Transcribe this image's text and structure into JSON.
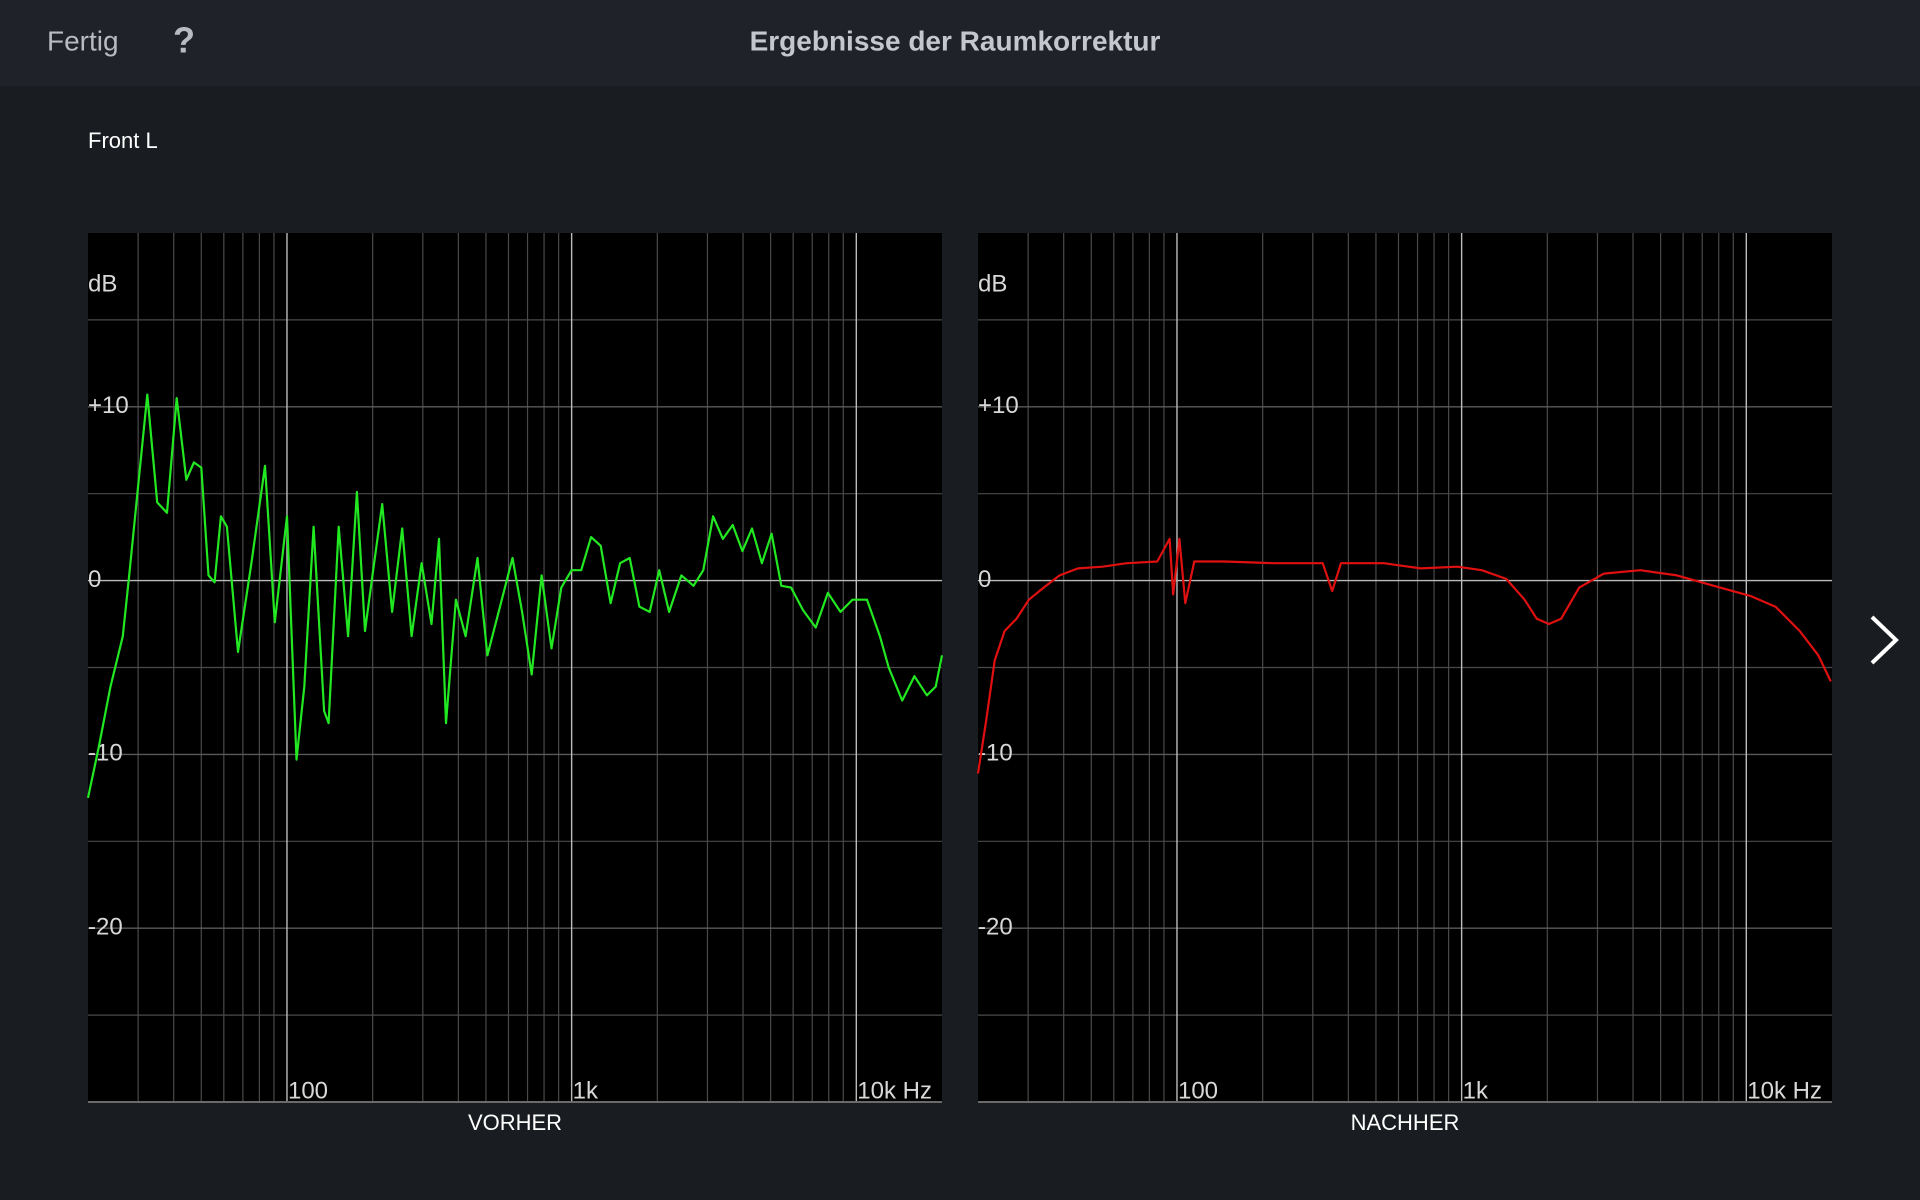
{
  "header": {
    "done": "Fertig",
    "help": "?",
    "title": "Ergebnisse der Raumkorrektur"
  },
  "section": {
    "title": "Front L"
  },
  "chart_data": [
    {
      "type": "line",
      "xlabel": "VORHER",
      "ylabel": "dB",
      "xscale": "log",
      "color": "#22e822",
      "xlim": [
        20,
        20000
      ],
      "ylim": [
        -30,
        20
      ],
      "xticks": [
        {
          "value": 100,
          "label": "100"
        },
        {
          "value": 1000,
          "label": "1k"
        },
        {
          "value": 10000,
          "label": "10k Hz"
        }
      ],
      "xminor": [
        30,
        40,
        50,
        60,
        70,
        80,
        90,
        200,
        300,
        400,
        500,
        600,
        700,
        800,
        900,
        2000,
        3000,
        4000,
        5000,
        6000,
        7000,
        8000,
        9000
      ],
      "yticks": [
        {
          "value": 10,
          "label": "+10"
        },
        0,
        -10,
        -20
      ],
      "yminor": [
        15,
        5,
        -5,
        -15,
        -25
      ],
      "x": [
        20,
        21.8,
        24,
        26.5,
        27.9,
        29.9,
        32.3,
        35,
        37.9,
        41,
        44.3,
        47.1,
        50,
        53,
        55.7,
        58.6,
        61.5,
        67.3,
        75,
        83.7,
        90.6,
        100,
        108,
        115,
        124,
        135,
        140,
        152,
        164,
        176,
        188,
        200,
        216,
        234,
        254,
        274,
        297,
        322,
        342,
        362,
        392,
        424,
        467,
        506,
        560,
        620,
        670,
        724,
        784,
        850,
        920,
        1000,
        1080,
        1170,
        1265,
        1370,
        1480,
        1600,
        1730,
        1880,
        2030,
        2200,
        2430,
        2680,
        2900,
        3140,
        3400,
        3680,
        3980,
        4300,
        4660,
        5040,
        5450,
        5900,
        6500,
        7200,
        7950,
        8800,
        9700,
        10900,
        12100,
        13000,
        14500,
        16000,
        17700,
        19000,
        20000
      ],
      "values": [
        -12.5,
        -9.6,
        -6.1,
        -3.2,
        0.3,
        5.2,
        10.7,
        4.5,
        3.9,
        10.5,
        5.8,
        6.8,
        6.5,
        0.3,
        -0.1,
        3.7,
        3.1,
        -4.1,
        1,
        6.6,
        -2.4,
        3.7,
        -10.3,
        -6.1,
        3.1,
        -7.5,
        -8.2,
        3.1,
        -3.2,
        5.1,
        -2.9,
        0.4,
        4.4,
        -1.8,
        3,
        -3.2,
        1,
        -2.5,
        2.4,
        -8.2,
        -1.1,
        -3.2,
        1.3,
        -4.3,
        -1.5,
        1.3,
        -1.8,
        -5.4,
        0.3,
        -3.9,
        -0.4,
        0.6,
        0.6,
        2.5,
        2,
        -1.3,
        1,
        1.3,
        -1.5,
        -1.8,
        0.6,
        -1.8,
        0.3,
        -0.3,
        0.6,
        3.7,
        2.4,
        3.2,
        1.7,
        3,
        1,
        2.7,
        -0.3,
        -0.4,
        -1.7,
        -2.7,
        -0.7,
        -1.8,
        -1.1,
        -1.1,
        -3.2,
        -5,
        -6.9,
        -5.5,
        -6.6,
        -6.1,
        -4.3
      ]
    },
    {
      "type": "line",
      "xlabel": "NACHHER",
      "ylabel": "dB",
      "xscale": "log",
      "color": "#e01010",
      "xlim": [
        20,
        20000
      ],
      "ylim": [
        -30,
        20
      ],
      "xticks": [
        {
          "value": 100,
          "label": "100"
        },
        {
          "value": 1000,
          "label": "1k"
        },
        {
          "value": 10000,
          "label": "10k Hz"
        }
      ],
      "xminor": [
        30,
        40,
        50,
        60,
        70,
        80,
        90,
        200,
        300,
        400,
        500,
        600,
        700,
        800,
        900,
        2000,
        3000,
        4000,
        5000,
        6000,
        7000,
        8000,
        9000
      ],
      "yticks": [
        {
          "value": 10,
          "label": "+10"
        },
        0,
        -10,
        -20
      ],
      "yminor": [
        15,
        5,
        -5,
        -15,
        -25
      ],
      "x": [
        20,
        21.3,
        22.9,
        24.8,
        27.3,
        30.2,
        34,
        38.7,
        44.9,
        54.7,
        66.6,
        85.3,
        94.2,
        97,
        102,
        107,
        115,
        147,
        218,
        325,
        351,
        377,
        533,
        718,
        967,
        1177,
        1434,
        1664,
        1836,
        2026,
        2236,
        2589,
        3160,
        4247,
        5710,
        7690,
        10400,
        12660,
        15400,
        17900,
        19800
      ],
      "values": [
        -11.1,
        -8.2,
        -4.6,
        -2.9,
        -2.2,
        -1.1,
        -0.4,
        0.3,
        0.7,
        0.8,
        1,
        1.1,
        2.4,
        -0.8,
        2.4,
        -1.3,
        1.1,
        1.1,
        1,
        1,
        -0.6,
        1,
        1,
        0.7,
        0.8,
        0.6,
        0.1,
        -1.1,
        -2.2,
        -2.5,
        -2.2,
        -0.4,
        0.4,
        0.6,
        0.3,
        -0.3,
        -0.9,
        -1.5,
        -2.9,
        -4.3,
        -5.8
      ]
    }
  ]
}
